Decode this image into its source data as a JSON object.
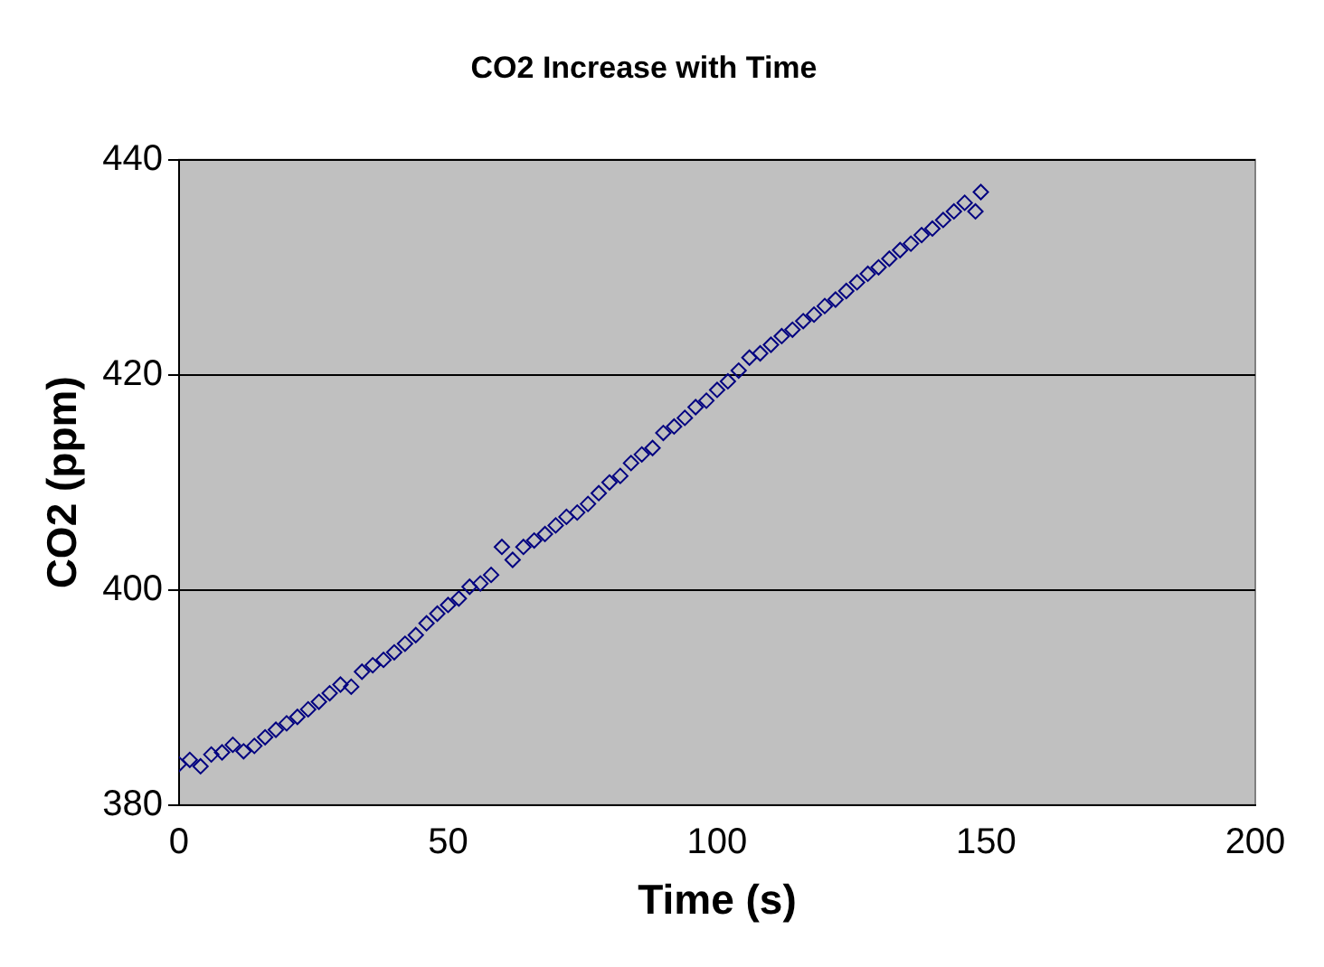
{
  "chart_data": {
    "type": "scatter",
    "title": "CO2 Increase with Time",
    "xlabel": "Time (s)",
    "ylabel": "CO2 (ppm)",
    "x": [
      0,
      2,
      4,
      6,
      8,
      10,
      12,
      14,
      16,
      18,
      20,
      22,
      24,
      26,
      28,
      30,
      32,
      34,
      36,
      38,
      40,
      42,
      44,
      46,
      48,
      50,
      52,
      54,
      56,
      58,
      60,
      62,
      64,
      66,
      68,
      70,
      72,
      74,
      76,
      78,
      80,
      82,
      84,
      86,
      88,
      90,
      92,
      94,
      96,
      98,
      100,
      102,
      104,
      106,
      108,
      110,
      112,
      114,
      116,
      118,
      120,
      122,
      124,
      126,
      128,
      130,
      132,
      134,
      136,
      138,
      140,
      142,
      144,
      146,
      148,
      149
    ],
    "series": [
      {
        "color": "#000080",
        "values": [
          383.8,
          384.2,
          383.6,
          384.7,
          384.9,
          385.6,
          385.0,
          385.5,
          386.3,
          387.0,
          387.6,
          388.2,
          388.9,
          389.6,
          390.4,
          391.2,
          391.0,
          392.4,
          393.0,
          393.5,
          394.2,
          395.0,
          395.8,
          396.9,
          397.8,
          398.6,
          399.2,
          400.3,
          400.6,
          401.4,
          404.0,
          402.8,
          404.0,
          404.6,
          405.2,
          406.0,
          406.8,
          407.2,
          408.0,
          409.0,
          410.0,
          410.6,
          411.8,
          412.6,
          413.2,
          414.6,
          415.2,
          416.0,
          417.0,
          417.6,
          418.6,
          419.4,
          420.4,
          421.6,
          422.0,
          422.8,
          423.6,
          424.2,
          425.0,
          425.6,
          426.4,
          427.0,
          427.8,
          428.6,
          429.4,
          430.0,
          430.8,
          431.6,
          432.2,
          433.0,
          433.6,
          434.4,
          435.2,
          436.0,
          435.2,
          437.0
        ]
      }
    ],
    "xlim": [
      0,
      200
    ],
    "xticks": [
      0,
      50,
      100,
      150,
      200
    ],
    "ylim": [
      380,
      440
    ],
    "yticks": [
      380,
      400,
      420,
      440
    ],
    "grid": "y",
    "legend": false,
    "marker": "diamond"
  }
}
